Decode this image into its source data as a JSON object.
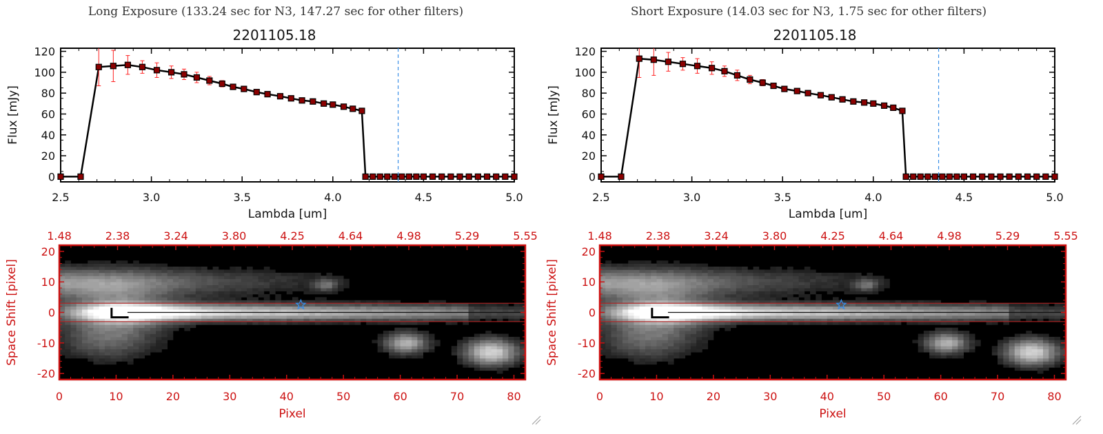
{
  "panels": [
    {
      "header": "Long Exposure (133.24 sec for N3, 147.27 sec for other filters)",
      "object_id": "2201105.18"
    },
    {
      "header": "Short Exposure (14.03 sec for N3, 1.75 sec for other filters)",
      "object_id": "2201105.18"
    }
  ],
  "colors": {
    "axis": "#000000",
    "marker": "#8b0000",
    "errorbar": "#ff2020",
    "vline": "#3a8ee6",
    "red_axis": "#cc1111",
    "aperture": "#b02020"
  },
  "chart_data": [
    {
      "type": "line",
      "title": "2201105.18",
      "xlabel": "Lambda [um]",
      "ylabel": "Flux [mJy]",
      "xlim": [
        2.5,
        5.0
      ],
      "ylim": [
        -5,
        123
      ],
      "xticks": [
        "2.5",
        "3.0",
        "3.5",
        "4.0",
        "4.5",
        "5.0"
      ],
      "yticks": [
        "0",
        "20",
        "40",
        "60",
        "80",
        "100",
        "120"
      ],
      "vline_x": 4.36,
      "series": [
        {
          "name": "spectrum",
          "x": [
            2.5,
            2.61,
            2.71,
            2.79,
            2.87,
            2.95,
            3.03,
            3.11,
            3.18,
            3.25,
            3.32,
            3.39,
            3.45,
            3.51,
            3.58,
            3.64,
            3.71,
            3.77,
            3.83,
            3.89,
            3.95,
            4.0,
            4.06,
            4.11,
            4.16,
            4.18,
            4.22,
            4.26,
            4.3,
            4.34,
            4.38,
            4.42,
            4.46,
            4.5,
            4.55,
            4.6,
            4.65,
            4.7,
            4.75,
            4.8,
            4.85,
            4.9,
            4.95,
            5.0
          ],
          "y": [
            0,
            0,
            105,
            106,
            107,
            105,
            102,
            100,
            98,
            95,
            92,
            89,
            86,
            84,
            81,
            79,
            77,
            75,
            73,
            72,
            70,
            69,
            67,
            65,
            63,
            0,
            0,
            0,
            0,
            0,
            0,
            0,
            0,
            0,
            0,
            0,
            0,
            0,
            0,
            0,
            0,
            0,
            0,
            0
          ],
          "err": [
            0,
            0,
            18,
            15,
            9,
            6,
            7,
            6,
            5,
            5,
            4,
            3,
            2,
            2,
            2,
            1,
            1,
            1,
            1,
            1,
            1,
            1,
            1,
            1,
            1,
            0,
            0,
            0,
            0,
            0,
            0,
            0,
            0,
            0,
            0,
            0,
            0,
            0,
            0,
            0,
            0,
            0,
            0,
            0
          ]
        }
      ]
    },
    {
      "type": "line",
      "title": "2201105.18",
      "xlabel": "Lambda [um]",
      "ylabel": "Flux [mJy]",
      "xlim": [
        2.5,
        5.0
      ],
      "ylim": [
        -5,
        123
      ],
      "xticks": [
        "2.5",
        "3.0",
        "3.5",
        "4.0",
        "4.5",
        "5.0"
      ],
      "yticks": [
        "0",
        "20",
        "40",
        "60",
        "80",
        "100",
        "120"
      ],
      "vline_x": 4.36,
      "series": [
        {
          "name": "spectrum",
          "x": [
            2.5,
            2.61,
            2.71,
            2.79,
            2.87,
            2.95,
            3.03,
            3.11,
            3.18,
            3.25,
            3.32,
            3.39,
            3.45,
            3.51,
            3.58,
            3.64,
            3.71,
            3.77,
            3.83,
            3.89,
            3.95,
            4.0,
            4.06,
            4.11,
            4.16,
            4.18,
            4.22,
            4.26,
            4.3,
            4.34,
            4.38,
            4.42,
            4.46,
            4.5,
            4.55,
            4.6,
            4.65,
            4.7,
            4.75,
            4.8,
            4.85,
            4.9,
            4.95,
            5.0
          ],
          "y": [
            0,
            0,
            113,
            112,
            110,
            108,
            106,
            104,
            101,
            97,
            93,
            90,
            87,
            84,
            82,
            80,
            78,
            76,
            74,
            72,
            71,
            70,
            68,
            66,
            63,
            0,
            0,
            0,
            0,
            0,
            0,
            0,
            0,
            0,
            0,
            0,
            0,
            0,
            0,
            0,
            0,
            0,
            0,
            0
          ],
          "err": [
            0,
            0,
            18,
            15,
            9,
            6,
            7,
            6,
            5,
            5,
            4,
            3,
            2,
            2,
            2,
            1,
            1,
            1,
            1,
            1,
            1,
            1,
            1,
            1,
            1,
            0,
            0,
            0,
            0,
            0,
            0,
            0,
            0,
            0,
            0,
            0,
            0,
            0,
            0,
            0,
            0,
            0,
            0,
            0
          ]
        }
      ]
    },
    {
      "type": "heatmap",
      "xlabel": "Pixel",
      "ylabel": "Space Shift [pixel]",
      "xlim": [
        0,
        82
      ],
      "ylim": [
        -22,
        22
      ],
      "xticks": [
        "0",
        "10",
        "20",
        "30",
        "40",
        "50",
        "60",
        "70",
        "80"
      ],
      "yticks": [
        "-20",
        "-10",
        "0",
        "10",
        "20"
      ],
      "top_ticks": [
        "1.48",
        "2.38",
        "3.24",
        "3.80",
        "4.25",
        "4.64",
        "4.98",
        "5.29",
        "5.55"
      ],
      "aperture_y": [
        3,
        -3
      ],
      "star_marker": [
        42.5,
        2.5
      ]
    },
    {
      "type": "heatmap",
      "xlabel": "Pixel",
      "ylabel": "Space Shift [pixel]",
      "xlim": [
        0,
        82
      ],
      "ylim": [
        -22,
        22
      ],
      "xticks": [
        "0",
        "10",
        "20",
        "30",
        "40",
        "50",
        "60",
        "70",
        "80"
      ],
      "yticks": [
        "-20",
        "-10",
        "0",
        "10",
        "20"
      ],
      "top_ticks": [
        "1.48",
        "2.38",
        "3.24",
        "3.80",
        "4.25",
        "4.64",
        "4.98",
        "5.29",
        "5.55"
      ],
      "aperture_y": [
        3,
        -3
      ],
      "star_marker": [
        42.5,
        2.5
      ]
    }
  ]
}
